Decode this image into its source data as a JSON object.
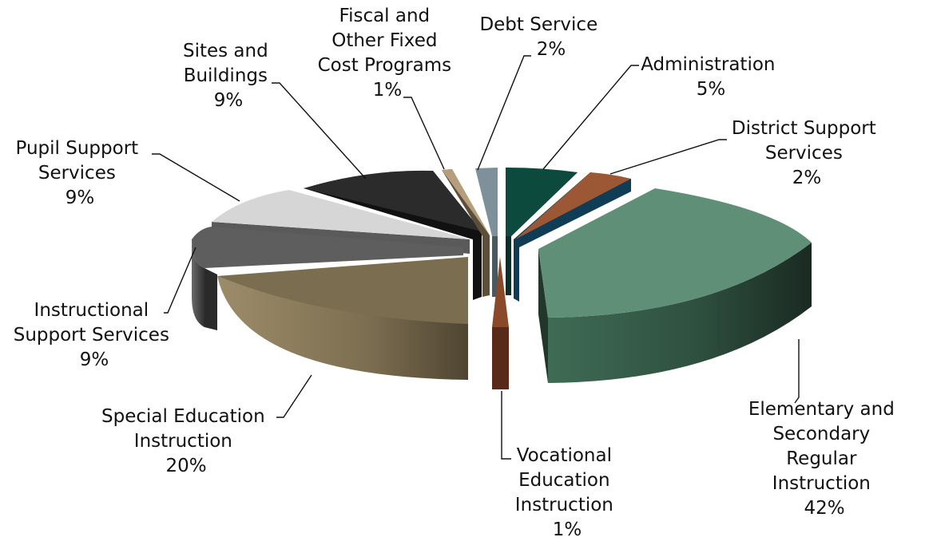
{
  "chart_data": {
    "type": "pie",
    "title": "",
    "slices": [
      {
        "name": "Elementary and Secondary Regular Instruction",
        "value": 42,
        "label_lines": [
          "Elementary and",
          "Secondary",
          "Regular",
          "Instruction"
        ],
        "value_label": "42%",
        "color": "#5f8f77"
      },
      {
        "name": "Vocational Education Instruction",
        "value": 1,
        "label_lines": [
          "Vocational",
          "Education",
          "Instruction"
        ],
        "value_label": "1%",
        "color": "#6b3520"
      },
      {
        "name": "Special Education Instruction",
        "value": 20,
        "label_lines": [
          "Special Education",
          "Instruction"
        ],
        "value_label": "20%",
        "color": "#7b6d4f"
      },
      {
        "name": "Instructional Support Services",
        "value": 9,
        "label_lines": [
          "Instructional",
          "Support Services"
        ],
        "value_label": "9%",
        "color": "#5e5e5e"
      },
      {
        "name": "Pupil Support Services",
        "value": 9,
        "label_lines": [
          "Pupil Support",
          "Services"
        ],
        "value_label": "9%",
        "color": "#d6d6d6"
      },
      {
        "name": "Sites and Buildings",
        "value": 9,
        "label_lines": [
          "Sites and",
          "Buildings"
        ],
        "value_label": "9%",
        "color": "#2a2a2a"
      },
      {
        "name": "Fiscal and Other Fixed Cost Programs",
        "value": 1,
        "label_lines": [
          "Fiscal and",
          "Other Fixed",
          "Cost Programs"
        ],
        "value_label": "1%",
        "color": "#b69e7c"
      },
      {
        "name": "Debt Service",
        "value": 2,
        "label_lines": [
          "Debt Service"
        ],
        "value_label": "2%",
        "color": "#7e919b"
      },
      {
        "name": "Administration",
        "value": 5,
        "label_lines": [
          "Administration"
        ],
        "value_label": "5%",
        "color": "#0c4a3e"
      },
      {
        "name": "District Support Services",
        "value": 2,
        "label_lines": [
          "District Support",
          "Services"
        ],
        "value_label": "2%",
        "color": "#9c5734"
      }
    ],
    "extra_visible_sides": [
      {
        "name": "District Support Services (side face)",
        "color": "#0e3d55"
      }
    ]
  }
}
